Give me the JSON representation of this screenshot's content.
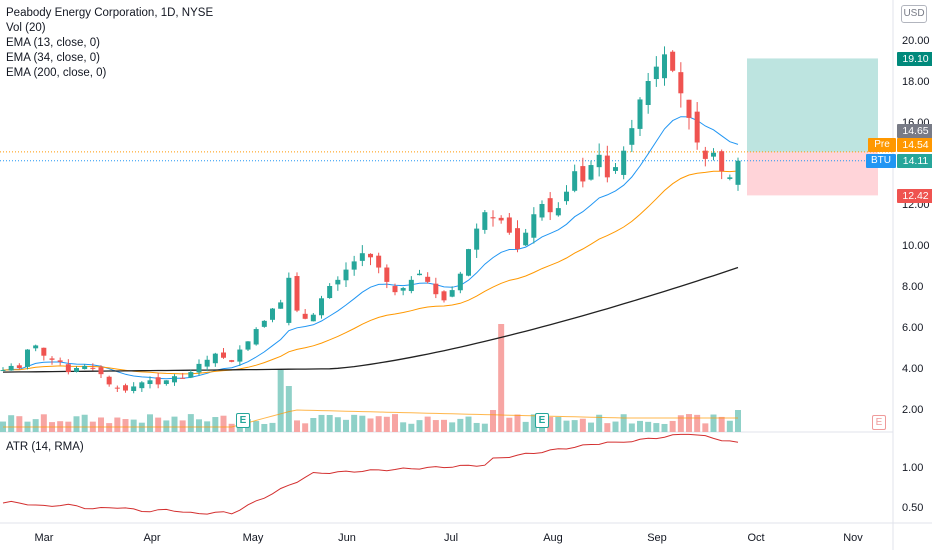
{
  "legend": {
    "title": "Peabody Energy Corporation, 1D, NYSE",
    "vol": "Vol (20)",
    "ema13": "EMA (13, close, 0)",
    "ema34": "EMA (34, close, 0)",
    "ema200": "EMA (200, close, 0)",
    "atr": "ATR (14, RMA)"
  },
  "currency": "USD",
  "price_axis": [
    "20.00",
    "18.00",
    "16.00",
    "12.00",
    "10.00",
    "8.00",
    "6.00",
    "4.00",
    "2.00"
  ],
  "atr_axis": [
    "1.00",
    "0.50"
  ],
  "time_axis": [
    "Mar",
    "Apr",
    "May",
    "Jun",
    "Jul",
    "Aug",
    "Sep",
    "Oct",
    "Nov"
  ],
  "tags": {
    "target": "19.10",
    "ema13_value": "14.65",
    "pre_label": "Pre",
    "pre_value": "14.54",
    "ticker_label": "BTU",
    "last_price": "14.11",
    "stop": "12.42"
  },
  "earnings_badge": "E",
  "colors": {
    "up": "#26a69a",
    "down": "#ef5350",
    "ema13": "#2196f3",
    "ema34": "#ff9800",
    "ema200": "#222222",
    "atr": "#d32f2f",
    "target_zone": "#b2dfdb",
    "stop_zone": "#ffcdd2"
  },
  "chart_data": {
    "type": "candlestick",
    "symbol": "BTU",
    "ylim": [
      1.0,
      21.5
    ],
    "series_close": [
      3.9,
      4.1,
      4.0,
      4.9,
      5.1,
      4.6,
      4.4,
      4.3,
      3.8,
      4.0,
      4.1,
      4.0,
      3.7,
      3.2,
      3.0,
      2.9,
      3.1,
      3.3,
      3.4,
      3.2,
      3.4,
      3.6,
      3.5,
      3.8,
      4.2,
      4.4,
      4.7,
      4.5,
      4.3,
      4.9,
      5.3,
      5.9,
      6.3,
      6.9,
      7.2,
      8.4,
      6.8,
      6.4,
      6.6,
      7.4,
      8.0,
      8.3,
      8.8,
      9.2,
      9.6,
      9.4,
      8.9,
      8.2,
      7.7,
      7.9,
      8.3,
      8.6,
      8.2,
      7.6,
      7.3,
      7.8,
      8.6,
      9.8,
      10.8,
      11.6,
      11.3,
      11.2,
      10.6,
      9.8,
      10.6,
      11.5,
      12.0,
      11.6,
      11.8,
      12.6,
      13.6,
      13.1,
      13.9,
      14.4,
      13.3,
      13.8,
      14.6,
      15.7,
      17.1,
      18.0,
      18.7,
      19.3,
      18.5,
      17.4,
      16.2,
      15.0,
      14.2,
      14.5,
      13.6,
      13.3,
      14.11
    ],
    "ema200_end": 8.9,
    "target": 19.1,
    "entry": 14.54,
    "stop": 12.42
  }
}
